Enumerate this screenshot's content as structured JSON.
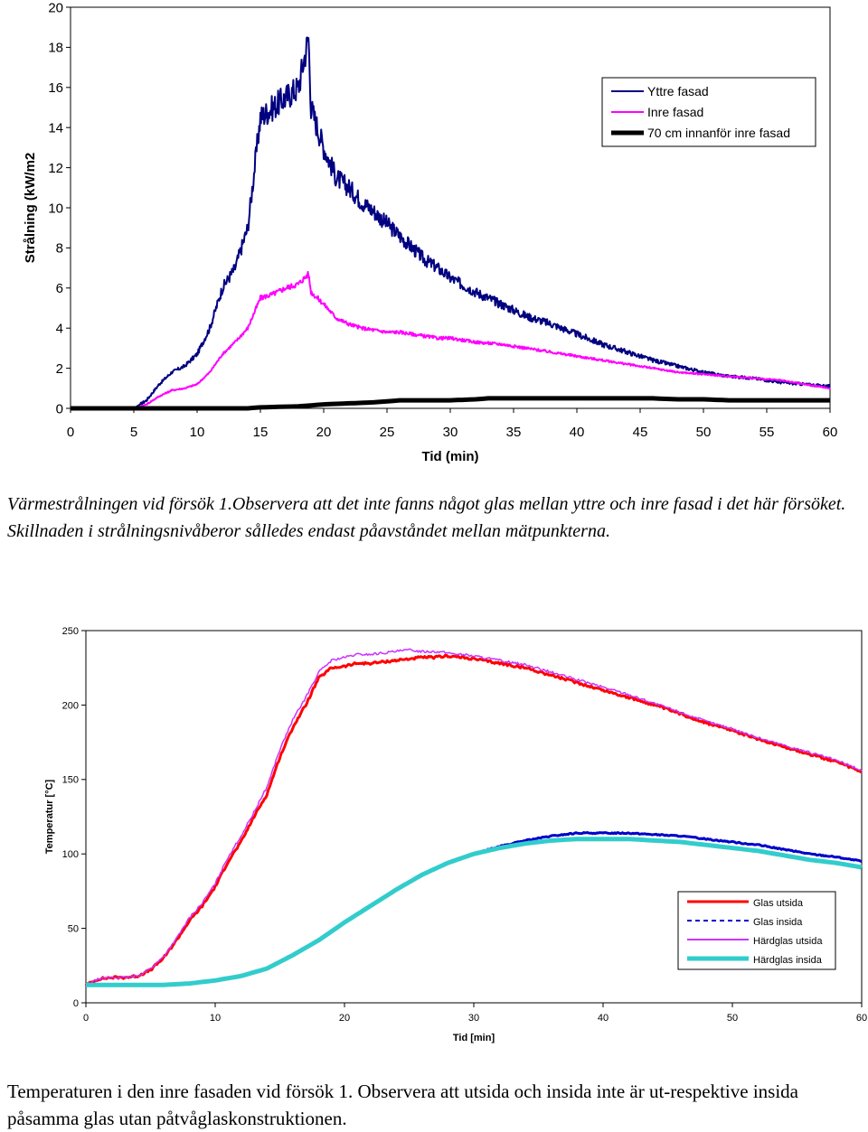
{
  "colors": {
    "yttre": "#000080",
    "inre": "#ff00ff",
    "innanfor": "#000000",
    "glas_utsida": "#ff0000",
    "glas_insida": "#0000cc",
    "hardglas_utsida": "#cc33ff",
    "hardglas_insida": "#33cccc"
  },
  "chart_data": [
    {
      "type": "line",
      "xlabel": "Tid (min)",
      "ylabel": "Strålning (kW/m2",
      "xlim": [
        0,
        60
      ],
      "ylim": [
        0,
        20
      ],
      "xticks": [
        "0",
        "5",
        "10",
        "15",
        "20",
        "25",
        "30",
        "35",
        "40",
        "45",
        "50",
        "55",
        "60"
      ],
      "yticks": [
        "0",
        "2",
        "4",
        "6",
        "8",
        "10",
        "12",
        "14",
        "16",
        "18",
        "20"
      ],
      "legend_position": "top-right",
      "grid": false,
      "series": [
        {
          "name": "Yttre fasad",
          "x": [
            0,
            5,
            6,
            7,
            8,
            9,
            10,
            11,
            12,
            13,
            14,
            15,
            16,
            17,
            18,
            18.8,
            19,
            20,
            21,
            22,
            23,
            24,
            25,
            26,
            27,
            28,
            29,
            30,
            32,
            34,
            36,
            38,
            40,
            42,
            44,
            46,
            48,
            50,
            52,
            54,
            56,
            58,
            60
          ],
          "y": [
            0,
            0,
            0.4,
            1.2,
            1.8,
            2.1,
            2.7,
            4.0,
            6.0,
            7.0,
            9.0,
            14.5,
            15.0,
            15.5,
            16.0,
            18.5,
            15.0,
            13.0,
            11.5,
            11.0,
            10.3,
            9.8,
            9.2,
            8.6,
            8.0,
            7.4,
            7.0,
            6.5,
            5.8,
            5.2,
            4.6,
            4.2,
            3.7,
            3.2,
            2.8,
            2.4,
            2.1,
            1.8,
            1.6,
            1.5,
            1.3,
            1.2,
            1.1
          ]
        },
        {
          "name": "Inre fasad",
          "x": [
            0,
            5,
            6,
            7,
            8,
            9,
            10,
            11,
            12,
            13,
            14,
            15,
            16,
            17,
            18,
            18.8,
            19,
            20,
            21,
            22,
            23,
            24,
            25,
            26,
            27,
            28,
            29,
            30,
            32,
            34,
            36,
            38,
            40,
            42,
            44,
            46,
            48,
            50,
            52,
            54,
            56,
            58,
            60
          ],
          "y": [
            0,
            0,
            0.2,
            0.6,
            0.9,
            1.0,
            1.2,
            1.8,
            2.7,
            3.3,
            4.0,
            5.5,
            5.7,
            6.0,
            6.2,
            6.7,
            5.8,
            5.2,
            4.5,
            4.2,
            4.0,
            3.9,
            3.8,
            3.8,
            3.7,
            3.6,
            3.5,
            3.5,
            3.3,
            3.2,
            3.0,
            2.8,
            2.6,
            2.4,
            2.2,
            2.0,
            1.8,
            1.7,
            1.6,
            1.5,
            1.4,
            1.2,
            1.0
          ]
        },
        {
          "name": "70 cm innanför inre fasad",
          "x": [
            0,
            14,
            15,
            18,
            20,
            22,
            24,
            25,
            26,
            28,
            30,
            32,
            33,
            34,
            36,
            38,
            40,
            42,
            44,
            46,
            48,
            50,
            52,
            54,
            56,
            58,
            60
          ],
          "y": [
            0,
            0,
            0.05,
            0.1,
            0.2,
            0.25,
            0.3,
            0.35,
            0.4,
            0.4,
            0.4,
            0.45,
            0.5,
            0.5,
            0.5,
            0.5,
            0.5,
            0.5,
            0.5,
            0.5,
            0.45,
            0.45,
            0.4,
            0.4,
            0.4,
            0.4,
            0.4
          ]
        }
      ]
    },
    {
      "type": "line",
      "xlabel": "Tid [min]",
      "ylabel": "Temperatur [°C]",
      "xlim": [
        0,
        60
      ],
      "ylim": [
        0,
        250
      ],
      "xticks": [
        "0",
        "10",
        "20",
        "30",
        "40",
        "50",
        "60"
      ],
      "yticks": [
        "0",
        "50",
        "100",
        "150",
        "200",
        "250"
      ],
      "legend_position": "bottom-right",
      "grid": false,
      "series": [
        {
          "name": "Glas utsida",
          "x": [
            0,
            1,
            2,
            3,
            4,
            5,
            6,
            7,
            8,
            9,
            10,
            11,
            12,
            13,
            14,
            15,
            16,
            17,
            18,
            19,
            20,
            21,
            22,
            23,
            24,
            25,
            26,
            27,
            28,
            30,
            32,
            34,
            36,
            38,
            40,
            42,
            44,
            46,
            48,
            50,
            52,
            54,
            56,
            58,
            60
          ],
          "y": [
            12,
            16,
            17,
            17,
            18,
            22,
            30,
            42,
            55,
            65,
            78,
            95,
            108,
            125,
            140,
            165,
            185,
            200,
            218,
            225,
            226,
            228,
            228,
            229,
            230,
            231,
            232,
            232,
            233,
            231,
            228,
            225,
            220,
            215,
            210,
            205,
            200,
            194,
            188,
            183,
            177,
            172,
            167,
            162,
            155
          ]
        },
        {
          "name": "Glas insida",
          "x": [
            0,
            2,
            4,
            6,
            8,
            10,
            12,
            14,
            16,
            18,
            20,
            22,
            24,
            26,
            28,
            30,
            32,
            34,
            36,
            38,
            40,
            42,
            44,
            46,
            48,
            50,
            52,
            54,
            56,
            58,
            60
          ],
          "y": [
            12,
            12,
            12,
            12,
            13,
            15,
            18,
            23,
            32,
            42,
            54,
            65,
            76,
            86,
            94,
            100,
            105,
            109,
            112,
            114,
            114,
            114,
            113,
            112,
            110,
            108,
            106,
            103,
            100,
            98,
            95
          ]
        },
        {
          "name": "Härdglas utsida",
          "x": [
            0,
            1,
            2,
            3,
            4,
            5,
            6,
            7,
            8,
            9,
            10,
            11,
            12,
            13,
            14,
            15,
            16,
            17,
            18,
            19,
            20,
            21,
            22,
            23,
            24,
            25,
            26,
            27,
            28,
            30,
            32,
            34,
            36,
            38,
            40,
            42,
            44,
            46,
            48,
            50,
            52,
            54,
            56,
            58,
            60
          ],
          "y": [
            12,
            16,
            17,
            17,
            18,
            23,
            31,
            43,
            57,
            67,
            80,
            98,
            112,
            128,
            145,
            170,
            190,
            205,
            222,
            230,
            232,
            234,
            234,
            235,
            236,
            237,
            236,
            236,
            235,
            233,
            230,
            227,
            222,
            217,
            212,
            207,
            201,
            195,
            189,
            184,
            178,
            173,
            168,
            163,
            156
          ]
        },
        {
          "name": "Härdglas insida",
          "x": [
            0,
            2,
            4,
            6,
            8,
            10,
            12,
            14,
            16,
            18,
            20,
            22,
            24,
            26,
            28,
            30,
            32,
            34,
            36,
            38,
            40,
            42,
            44,
            46,
            48,
            50,
            52,
            54,
            56,
            58,
            60
          ],
          "y": [
            12,
            12,
            12,
            12,
            13,
            15,
            18,
            23,
            32,
            42,
            54,
            65,
            76,
            86,
            94,
            100,
            104,
            107,
            109,
            110,
            110,
            110,
            109,
            108,
            106,
            104,
            102,
            99,
            96,
            94,
            91
          ]
        }
      ]
    }
  ],
  "captions": {
    "caption1": "Värmestrålningen vid försök 1.Observera att det inte fanns något glas mellan yttre och inre fasad i det här försöket. Skillnaden i strålningsnivåberor sålledes endast påavståndet mellan mätpunkterna.",
    "caption2": "Temperaturen i den inre fasaden vid försök 1. Observera att utsida och insida inte är ut-respektive insida påsamma glas utan påtvåglaskonstruktionen."
  }
}
